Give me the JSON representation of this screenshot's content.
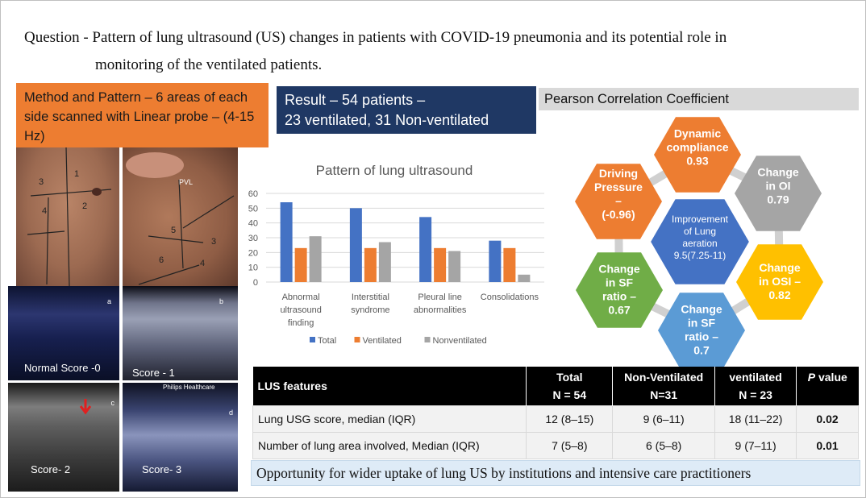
{
  "question": {
    "line1": "Question - Pattern of lung ultrasound (US) changes in patients with COVID-19 pneumonia and its potential role in",
    "line2": "monitoring of the ventilated patients."
  },
  "method": {
    "text": "Method and Pattern – 6 areas of each side scanned with Linear probe – (4-15 Hz)"
  },
  "result": {
    "line1": "Result – 54 patients –",
    "line2": "23 ventilated, 31 Non-ventilated"
  },
  "pearson": {
    "title": "Pearson Correlation Coefficient"
  },
  "ultrasound_labels": {
    "normal": "Normal Score -0",
    "score1": "Score - 1",
    "score2": "Score- 2",
    "score3": "Score- 3",
    "philips": "Philips Healthcare",
    "tag_a": "a",
    "tag_b": "b",
    "tag_c": "c",
    "tag_d": "d"
  },
  "chest_labels": {
    "left": [
      "1",
      "2",
      "3",
      "4"
    ],
    "right": [
      "5",
      "6",
      "3",
      "4"
    ],
    "pvl": "PVL"
  },
  "chart_data": {
    "type": "bar",
    "title": "Pattern of lung ultrasound",
    "categories": [
      [
        "Abnormal",
        "ultrasound",
        "finding"
      ],
      [
        "Interstitial",
        "syndrome"
      ],
      [
        "Pleural line",
        "abnormalities"
      ],
      [
        "Consolidations"
      ]
    ],
    "series": [
      {
        "name": "Total",
        "color": "#4472c4",
        "values": [
          54,
          50,
          44,
          28
        ]
      },
      {
        "name": "Ventilated",
        "color": "#ed7d31",
        "values": [
          23,
          23,
          23,
          23
        ]
      },
      {
        "name": "Nonventilated",
        "color": "#a5a5a5",
        "values": [
          31,
          27,
          21,
          5
        ]
      }
    ],
    "yticks": [
      "0",
      "10",
      "20",
      "30",
      "40",
      "50",
      "60"
    ],
    "ylim": [
      0,
      60
    ],
    "grid": true,
    "legend": "bottom"
  },
  "hexagons": {
    "center": {
      "text": [
        "Improvement",
        "of Lung",
        "aeration",
        "9.5(7.25-11)"
      ],
      "color": "#4472c4"
    },
    "items": [
      {
        "text": [
          "Dynamic",
          "compliance",
          "",
          "0.93"
        ],
        "color": "#ed7d31"
      },
      {
        "text": [
          "Change",
          "in OI",
          "",
          "0.79"
        ],
        "color": "#a5a5a5"
      },
      {
        "text": [
          "Change",
          "in OSI –",
          "0.82"
        ],
        "color": "#ffc000"
      },
      {
        "text": [
          "Change",
          "in SF",
          "ratio –",
          "0.7"
        ],
        "color": "#5b9bd5"
      },
      {
        "text": [
          "Change",
          "in SF",
          "ratio –",
          "0.67"
        ],
        "color": "#70ad47"
      },
      {
        "text": [
          "Driving",
          "Pressure",
          "–",
          "",
          "(-0.96)"
        ],
        "color": "#ed7d31"
      }
    ]
  },
  "table": {
    "headers": {
      "features": "LUS features",
      "total": "Total",
      "total_n": "N = 54",
      "nonvent": "Non-Ventilated",
      "nonvent_n": "N=31",
      "vent": "ventilated",
      "vent_n": "N = 23",
      "p_italic": "P",
      "p_rest": " value"
    },
    "rows": [
      {
        "feature": "Lung USG score, median (IQR)",
        "total": "12 (8–15)",
        "nonvent": "9 (6–11)",
        "vent": "18 (11–22)",
        "p": "0.02"
      },
      {
        "feature": "Number of lung area involved, Median (IQR)",
        "total": "7 (5–8)",
        "nonvent": "6 (5–8)",
        "vent": "9 (7–11)",
        "p": "0.01"
      }
    ]
  },
  "opportunity": {
    "text": "Opportunity for wider uptake of lung US by institutions and intensive care practitioners"
  }
}
